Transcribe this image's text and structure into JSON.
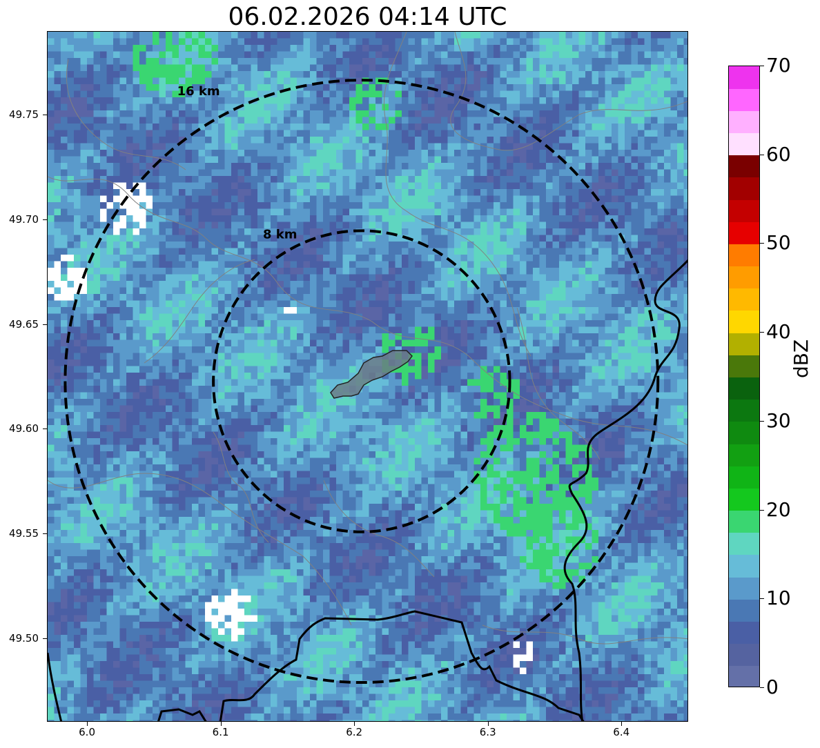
{
  "title": "06.02.2026 04:14 UTC",
  "map": {
    "lon_range": [
      5.97,
      6.45
    ],
    "lat_range": [
      49.46,
      49.79
    ],
    "x_ticks": [
      "6.0",
      "6.1",
      "6.2",
      "6.3",
      "6.4"
    ],
    "y_ticks": [
      "49.75",
      "49.70",
      "49.65",
      "49.60",
      "49.55",
      "49.50"
    ],
    "radar_center": {
      "lon": 6.205,
      "lat": 49.623
    },
    "rings": [
      {
        "label": "8 km",
        "radius_km": 8
      },
      {
        "label": "16 km",
        "radius_km": 16
      }
    ],
    "layers": [
      "reflectivity-field",
      "municipal-boundaries",
      "country-borders",
      "city-outline"
    ]
  },
  "colorbar": {
    "unit": "dBZ",
    "min": 0,
    "max": 70,
    "tick_labels": [
      "0",
      "10",
      "20",
      "30",
      "40",
      "50",
      "60",
      "70"
    ],
    "colors": [
      "#6470a8",
      "#5563a0",
      "#4a5fa5",
      "#4a78b4",
      "#5a9acb",
      "#66bcd8",
      "#5fd6c0",
      "#3ad671",
      "#14c81e",
      "#10b416",
      "#12a012",
      "#0f8a10",
      "#0c7810",
      "#0a620e",
      "#4a780a",
      "#b2b000",
      "#ffd700",
      "#ffb900",
      "#ff9c00",
      "#ff7c00",
      "#e60000",
      "#c40000",
      "#a20000",
      "#7a0000",
      "#ffe0ff",
      "#ffb0ff",
      "#ff66ff",
      "#ee33ee"
    ]
  }
}
